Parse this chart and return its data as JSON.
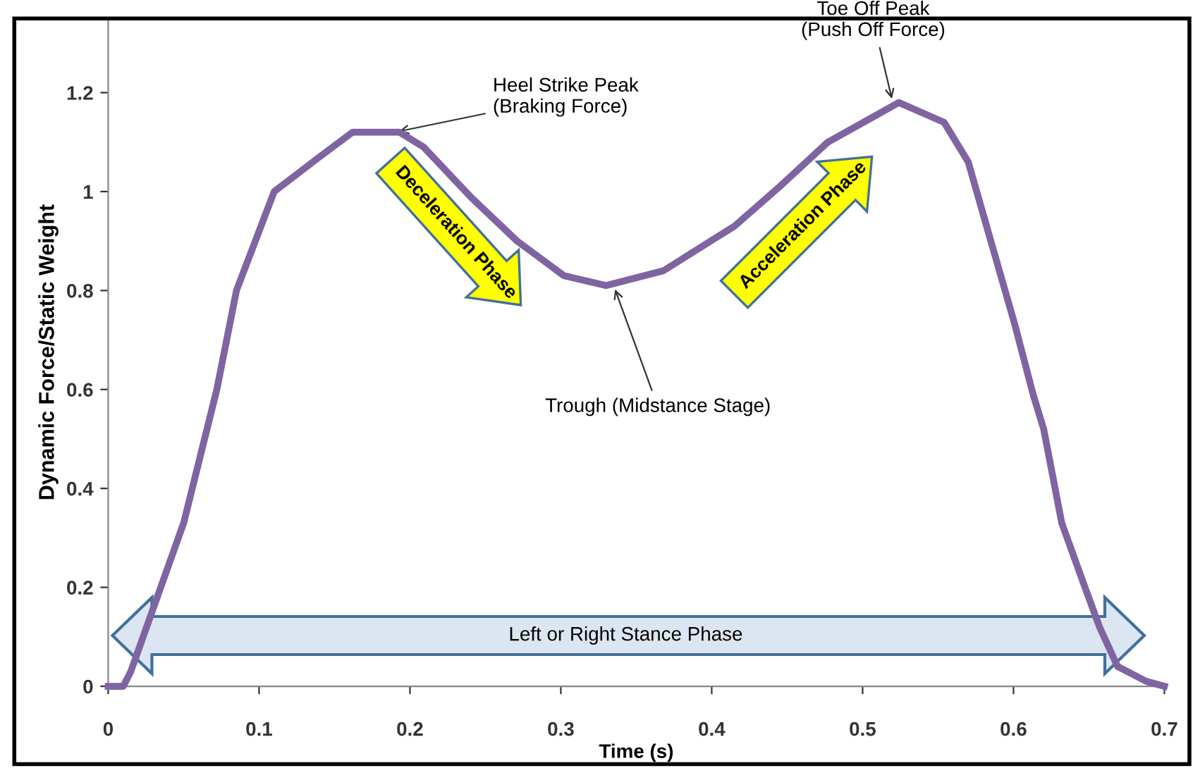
{
  "chart_data": {
    "type": "line",
    "xlabel": "Time (s)",
    "ylabel": "Dynamic Force/Static Weight",
    "x": [
      0,
      0.01,
      0.015,
      0.029,
      0.05,
      0.072,
      0.085,
      0.11,
      0.14,
      0.162,
      0.193,
      0.209,
      0.24,
      0.271,
      0.302,
      0.33,
      0.368,
      0.415,
      0.445,
      0.477,
      0.524,
      0.554,
      0.57,
      0.585,
      0.601,
      0.613,
      0.62,
      0.632,
      0.645,
      0.657,
      0.669,
      0.688,
      0.7
    ],
    "series": [
      {
        "color": "#8064a2",
        "values": [
          0,
          0,
          0.03,
          0.15,
          0.33,
          0.6,
          0.8,
          1.0,
          1.07,
          1.12,
          1.12,
          1.09,
          0.99,
          0.9,
          0.83,
          0.81,
          0.84,
          0.93,
          1.01,
          1.1,
          1.18,
          1.14,
          1.06,
          0.9,
          0.73,
          0.59,
          0.52,
          0.33,
          0.22,
          0.12,
          0.04,
          0.01,
          0
        ]
      }
    ],
    "xlim": [
      0,
      0.7
    ],
    "ylim": [
      0,
      1.35
    ],
    "xticks": [
      0,
      0.1,
      0.2,
      0.3,
      0.4,
      0.5,
      0.6,
      0.7
    ],
    "yticks": [
      0,
      0.2,
      0.4,
      0.6,
      0.8,
      1,
      1.2
    ],
    "grid": false,
    "legend": false,
    "marker": "none",
    "line_style": "solid",
    "annotations": [
      {
        "text": "Heel Strike Peak\n(Braking Force)",
        "x": 0.19,
        "y": 1.12
      },
      {
        "text": "Toe Off Peak\n(Push Off Force)",
        "x": 0.52,
        "y": 1.18
      },
      {
        "text": "Trough (Midstance Stage)",
        "x": 0.335,
        "y": 0.81
      },
      "Deceleration Phase",
      "Acceleration Phase",
      "Left or Right Stance Phase"
    ]
  }
}
